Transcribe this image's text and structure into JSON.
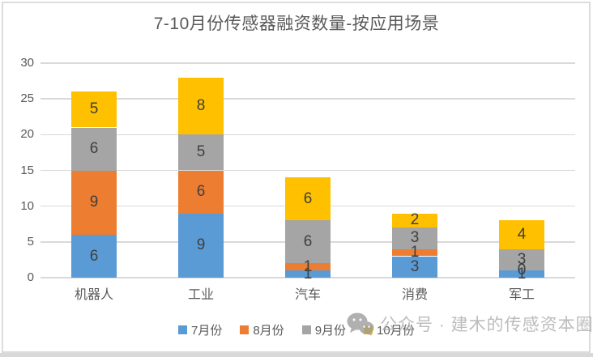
{
  "title": "7-10月份传感器融资数量-按应用场景",
  "watermark": {
    "icon": "wechat-icon",
    "label": "公众号 · 建木的传感资本圈"
  },
  "colors": {
    "series_blue": "#5B9BD5",
    "series_orange": "#ED7D31",
    "series_gray": "#A5A5A5",
    "series_yellow": "#FFC000",
    "gridline": "#D9D9D9",
    "axis_text": "#595959",
    "data_label": "#3F3F3F",
    "watermark_gray": "#A5A5A5"
  },
  "chart_data": {
    "type": "bar",
    "stacked": true,
    "title": "7-10月份传感器融资数量-按应用场景",
    "categories": [
      "机器人",
      "工业",
      "汽车",
      "消费",
      "军工"
    ],
    "series": [
      {
        "name": "7月份",
        "color": "#5B9BD5",
        "values": [
          6,
          9,
          1,
          3,
          1
        ]
      },
      {
        "name": "8月份",
        "color": "#ED7D31",
        "values": [
          9,
          6,
          1,
          1,
          0
        ]
      },
      {
        "name": "9月份",
        "color": "#A5A5A5",
        "values": [
          6,
          5,
          6,
          3,
          3
        ]
      },
      {
        "name": "10月份",
        "color": "#FFC000",
        "values": [
          5,
          8,
          6,
          2,
          4
        ]
      }
    ],
    "totals": [
      26,
      28,
      14,
      9,
      8
    ],
    "xlabel": "",
    "ylabel": "",
    "ylim": [
      0,
      30
    ],
    "yticks": [
      0,
      5,
      10,
      15,
      20,
      25,
      30
    ],
    "grid": true,
    "data_labels": true,
    "legend_position": "bottom"
  }
}
